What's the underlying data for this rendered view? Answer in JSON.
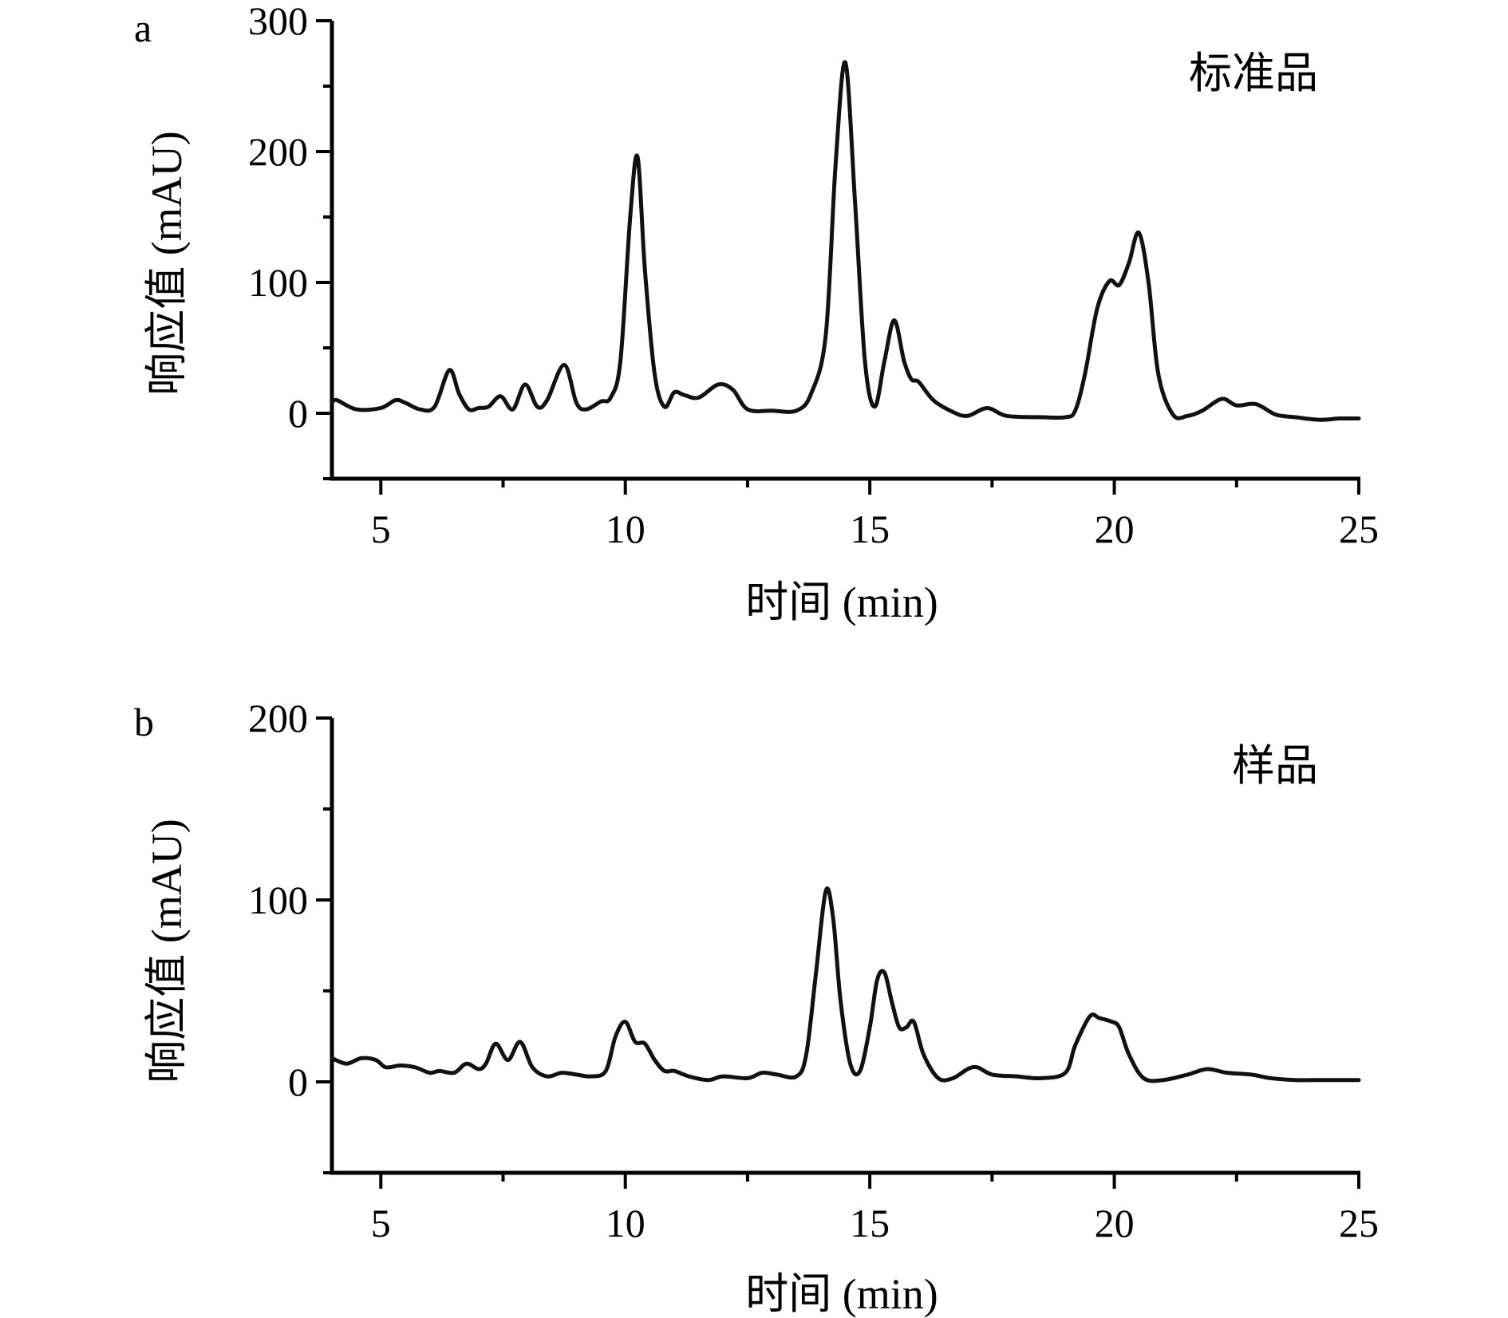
{
  "chart_data": [
    {
      "type": "line",
      "panel_label": "a",
      "annotation": "标准品",
      "xlabel": "时间 (min)",
      "ylabel": "响应值 (mAU)",
      "xlim": [
        4,
        25
      ],
      "ylim": [
        -50,
        300
      ],
      "xticks": [
        5,
        10,
        15,
        20,
        25
      ],
      "yticks": [
        0,
        100,
        200,
        300
      ],
      "x_minor_step": 2.5,
      "y_minor_step": 50,
      "grid": false,
      "legend": "none",
      "series": [
        {
          "color": "#111111",
          "x": [
            4.0,
            4.1,
            4.5,
            5.0,
            5.3,
            5.5,
            5.8,
            6.1,
            6.4,
            6.6,
            6.8,
            7.0,
            7.2,
            7.45,
            7.7,
            7.95,
            8.2,
            8.4,
            8.75,
            9.0,
            9.2,
            9.5,
            9.7,
            9.9,
            10.1,
            10.25,
            10.4,
            10.6,
            10.8,
            11.0,
            11.2,
            11.5,
            11.9,
            12.2,
            12.5,
            13.0,
            13.5,
            13.8,
            14.1,
            14.3,
            14.5,
            14.7,
            14.9,
            15.1,
            15.3,
            15.5,
            15.7,
            15.85,
            16.0,
            16.3,
            16.7,
            17.0,
            17.4,
            17.8,
            18.5,
            19.0,
            19.2,
            19.4,
            19.65,
            19.9,
            20.1,
            20.3,
            20.5,
            20.7,
            20.9,
            21.2,
            21.5,
            21.8,
            22.2,
            22.5,
            22.9,
            23.3,
            23.7,
            24.2,
            24.6,
            25.0
          ],
          "y": [
            8,
            10,
            3,
            4,
            10,
            8,
            3,
            5,
            33,
            15,
            3,
            4,
            5,
            13,
            3,
            22,
            5,
            10,
            37,
            8,
            3,
            9,
            12,
            40,
            150,
            196,
            110,
            30,
            5,
            16,
            14,
            12,
            22,
            18,
            3,
            2,
            2,
            15,
            60,
            190,
            268,
            160,
            40,
            5,
            40,
            71,
            40,
            26,
            24,
            10,
            1,
            -2,
            4,
            -2,
            -3,
            -3,
            2,
            30,
            80,
            101,
            98,
            115,
            138,
            100,
            30,
            -1,
            -2,
            2,
            11,
            6,
            7,
            -1,
            -3,
            -5,
            -4,
            -4
          ]
        }
      ]
    },
    {
      "type": "line",
      "panel_label": "b",
      "annotation": "样品",
      "xlabel": "时间 (min)",
      "ylabel": "响应值 (mAU)",
      "xlim": [
        4,
        25
      ],
      "ylim": [
        -50,
        200
      ],
      "xticks": [
        5,
        10,
        15,
        20,
        25
      ],
      "yticks": [
        0,
        100,
        200
      ],
      "x_minor_step": 2.5,
      "y_minor_step": 50,
      "grid": false,
      "legend": "none",
      "series": [
        {
          "color": "#111111",
          "x": [
            4.0,
            4.3,
            4.6,
            4.9,
            5.1,
            5.4,
            5.7,
            6.0,
            6.2,
            6.5,
            6.75,
            7.0,
            7.15,
            7.35,
            7.6,
            7.85,
            8.1,
            8.4,
            8.7,
            9.0,
            9.3,
            9.6,
            9.8,
            10.0,
            10.2,
            10.4,
            10.6,
            10.8,
            11.0,
            11.3,
            11.7,
            12.0,
            12.5,
            12.8,
            13.1,
            13.5,
            13.7,
            13.9,
            14.1,
            14.25,
            14.4,
            14.6,
            14.8,
            15.0,
            15.15,
            15.3,
            15.45,
            15.6,
            15.75,
            15.9,
            16.1,
            16.4,
            16.7,
            17.0,
            17.2,
            17.5,
            18.0,
            18.5,
            19.0,
            19.2,
            19.5,
            19.7,
            19.95,
            20.1,
            20.3,
            20.6,
            21.0,
            21.5,
            21.9,
            22.3,
            22.8,
            23.2,
            23.7,
            24.3,
            25.0
          ],
          "y": [
            13,
            10,
            13,
            12,
            8,
            9,
            8,
            5,
            6,
            5,
            10,
            7,
            10,
            21,
            12,
            22,
            8,
            3,
            5,
            4,
            3,
            6,
            25,
            33,
            22,
            21,
            12,
            6,
            6,
            3,
            1,
            3,
            2,
            5,
            4,
            3,
            15,
            60,
            105,
            90,
            45,
            10,
            6,
            30,
            56,
            60,
            44,
            30,
            30,
            33,
            15,
            2,
            2,
            7,
            8,
            4,
            3,
            2,
            5,
            20,
            36,
            35,
            33,
            30,
            15,
            2,
            1,
            4,
            7,
            5,
            4,
            2,
            1,
            1,
            1
          ]
        }
      ]
    }
  ]
}
